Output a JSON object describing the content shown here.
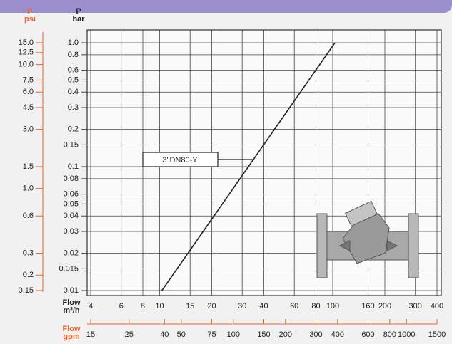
{
  "chart_data": {
    "type": "line",
    "xscale": "log",
    "yscale": "log",
    "axis_titles": {
      "y": {
        "name": "P",
        "unit": "bar"
      },
      "y2": {
        "name": "P",
        "unit": "psi"
      },
      "x": {
        "name": "Flow",
        "unit": "m³/h"
      },
      "x2": {
        "name": "Flow",
        "unit": "gpm"
      }
    },
    "x": [
      10.3,
      103
    ],
    "series": [
      {
        "name": "3\"DN80-Y",
        "color": "#222222",
        "values": [
          0.01,
          1
        ]
      }
    ],
    "xlim": [
      4,
      400
    ],
    "xticks": [
      4,
      6,
      8,
      10,
      15,
      20,
      30,
      40,
      60,
      80,
      100,
      160,
      200,
      300,
      400
    ],
    "ylim": [
      0.01,
      1
    ],
    "yticks": [
      {
        "value": 1,
        "label": "1.0"
      },
      0.8,
      0.6,
      0.5,
      0.4,
      0.3,
      0.2,
      0.15,
      0.1,
      0.08,
      0.06,
      0.05,
      0.04,
      0.03,
      0.02,
      0.015,
      0.01
    ],
    "y2lim": [
      0.15,
      15
    ],
    "y2ticks": [
      {
        "value": 15,
        "label": "15.0"
      },
      12.5,
      {
        "value": 10,
        "label": "10.0"
      },
      7.5,
      {
        "value": 6,
        "label": "6.0"
      },
      4.5,
      {
        "value": 3,
        "label": "3.0"
      },
      1.5,
      {
        "value": 1,
        "label": "1.0"
      },
      0.6,
      0.3,
      0.2,
      0.15
    ],
    "x2lim": [
      15,
      1500
    ],
    "x2ticks": [
      15,
      25,
      40,
      50,
      75,
      100,
      150,
      200,
      300,
      400,
      600,
      800,
      1000,
      1500
    ],
    "secondary_color": "#e8642c",
    "grid": true
  }
}
